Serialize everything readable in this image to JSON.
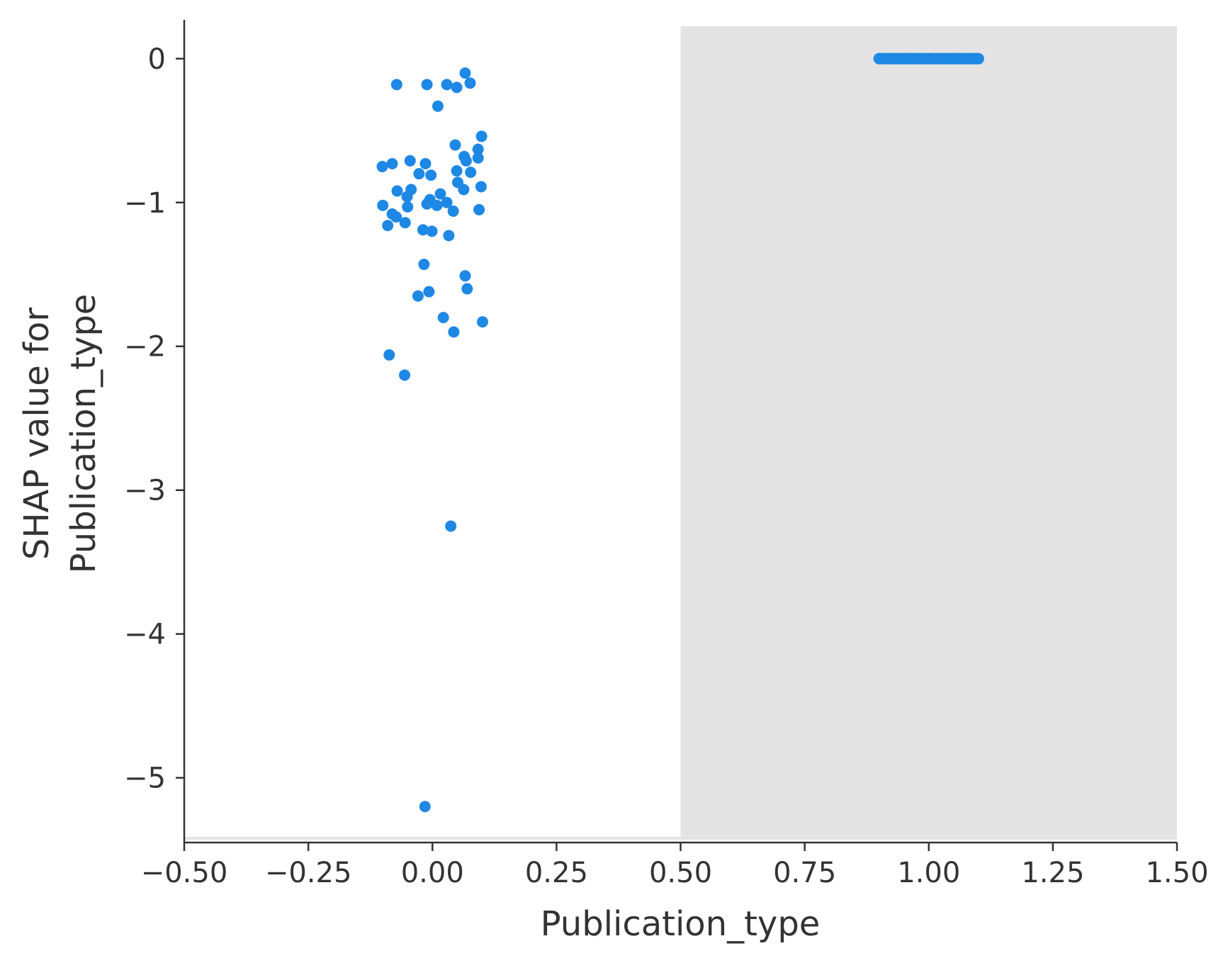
{
  "chart_data": {
    "type": "scatter",
    "title": "",
    "xlabel": "Publication_type",
    "ylabel_lines": [
      "SHAP value for",
      "Publication_type"
    ],
    "xlim": [
      -0.5,
      1.5
    ],
    "ylim": [
      -5.45,
      0.27
    ],
    "x_ticks": [
      -0.5,
      -0.25,
      0.0,
      0.25,
      0.5,
      0.75,
      1.0,
      1.25,
      1.5
    ],
    "x_tick_labels": [
      "−0.50",
      "−0.25",
      "0.00",
      "0.25",
      "0.50",
      "0.75",
      "1.00",
      "1.25",
      "1.50"
    ],
    "y_ticks": [
      0,
      -1,
      -2,
      -3,
      -4,
      -5
    ],
    "y_tick_labels": [
      "0",
      "−1",
      "−2",
      "−3",
      "−4",
      "−5"
    ],
    "grid": false,
    "colors": {
      "points": "#1e88e5",
      "band": "#e4e4e4",
      "axis": "#333333"
    },
    "shaded_bands": [
      {
        "x0": 0.5,
        "x1": 1.5
      }
    ],
    "series": [
      {
        "points": [
          [
            -0.072,
            -0.18
          ],
          [
            -0.011,
            -0.18
          ],
          [
            0.029,
            -0.18
          ],
          [
            0.049,
            -0.2
          ],
          [
            0.066,
            -0.1
          ],
          [
            0.076,
            -0.17
          ],
          [
            0.011,
            -0.33
          ],
          [
            0.046,
            -0.6
          ],
          [
            0.099,
            -0.54
          ],
          [
            0.092,
            -0.63
          ],
          [
            0.064,
            -0.68
          ],
          [
            0.068,
            -0.71
          ],
          [
            0.092,
            -0.69
          ],
          [
            0.077,
            -0.79
          ],
          [
            0.049,
            -0.78
          ],
          [
            -0.101,
            -0.75
          ],
          [
            -0.081,
            -0.73
          ],
          [
            -0.045,
            -0.71
          ],
          [
            -0.014,
            -0.73
          ],
          [
            -0.027,
            -0.8
          ],
          [
            -0.003,
            -0.81
          ],
          [
            0.051,
            -0.86
          ],
          [
            0.063,
            -0.91
          ],
          [
            0.098,
            -0.89
          ],
          [
            -0.071,
            -0.92
          ],
          [
            -0.043,
            -0.91
          ],
          [
            -0.051,
            -0.96
          ],
          [
            0.016,
            -0.94
          ],
          [
            -0.005,
            -0.98
          ],
          [
            -0.011,
            -1.01
          ],
          [
            0.009,
            -1.02
          ],
          [
            0.029,
            -1.0
          ],
          [
            0.042,
            -1.06
          ],
          [
            0.094,
            -1.05
          ],
          [
            -0.1,
            -1.02
          ],
          [
            -0.05,
            -1.03
          ],
          [
            -0.081,
            -1.08
          ],
          [
            -0.073,
            -1.1
          ],
          [
            -0.055,
            -1.14
          ],
          [
            -0.09,
            -1.16
          ],
          [
            -0.019,
            -1.19
          ],
          [
            -0.001,
            -1.2
          ],
          [
            0.033,
            -1.23
          ],
          [
            -0.017,
            -1.43
          ],
          [
            0.066,
            -1.51
          ],
          [
            0.07,
            -1.6
          ],
          [
            -0.007,
            -1.62
          ],
          [
            -0.029,
            -1.65
          ],
          [
            0.022,
            -1.8
          ],
          [
            0.101,
            -1.83
          ],
          [
            0.043,
            -1.9
          ],
          [
            -0.087,
            -2.06
          ],
          [
            -0.056,
            -2.2
          ],
          [
            0.037,
            -3.25
          ],
          [
            -0.015,
            -5.2
          ]
        ]
      },
      {
        "points": [
          [
            0.9,
            0.0
          ],
          [
            0.92,
            0.0
          ],
          [
            0.94,
            0.0
          ],
          [
            0.96,
            0.0
          ],
          [
            0.98,
            0.0
          ],
          [
            1.0,
            0.0
          ],
          [
            1.02,
            0.0
          ],
          [
            1.04,
            0.0
          ],
          [
            1.06,
            0.0
          ],
          [
            1.08,
            0.0
          ],
          [
            1.1,
            0.0
          ]
        ]
      }
    ]
  }
}
